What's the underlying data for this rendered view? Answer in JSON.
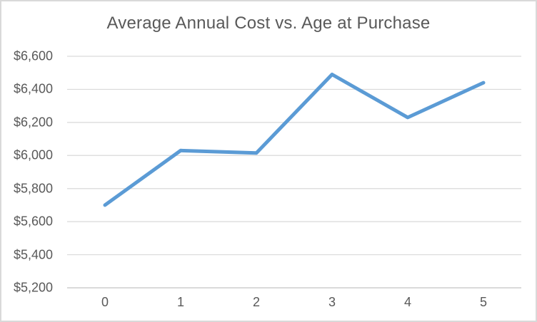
{
  "chart_data": {
    "type": "line",
    "title": "Average Annual Cost vs. Age at Purchase",
    "categories": [
      "0",
      "1",
      "2",
      "3",
      "4",
      "5"
    ],
    "series": [
      {
        "name": "Average Annual Cost",
        "values": [
          5700,
          6030,
          6015,
          6490,
          6230,
          6440
        ]
      }
    ],
    "xlabel": "",
    "ylabel": "",
    "ylim": [
      5200,
      6600
    ],
    "y_tick_step": 200,
    "y_ticks": [
      {
        "value": 5200,
        "label": "$5,200"
      },
      {
        "value": 5400,
        "label": "$5,400"
      },
      {
        "value": 5600,
        "label": "$5,600"
      },
      {
        "value": 5800,
        "label": "$5,800"
      },
      {
        "value": 6000,
        "label": "$6,000"
      },
      {
        "value": 6200,
        "label": "$6,200"
      },
      {
        "value": 6400,
        "label": "$6,400"
      },
      {
        "value": 6600,
        "label": "$6,600"
      }
    ],
    "grid": "horizontal",
    "legend": "none",
    "markers": "none"
  },
  "colors": {
    "line": "#5B9BD5",
    "gridline": "#D9D9D9",
    "axis_line": "#CDCDCD",
    "text": "#595959",
    "border": "#D9D9D9",
    "background": "#FFFFFF"
  }
}
